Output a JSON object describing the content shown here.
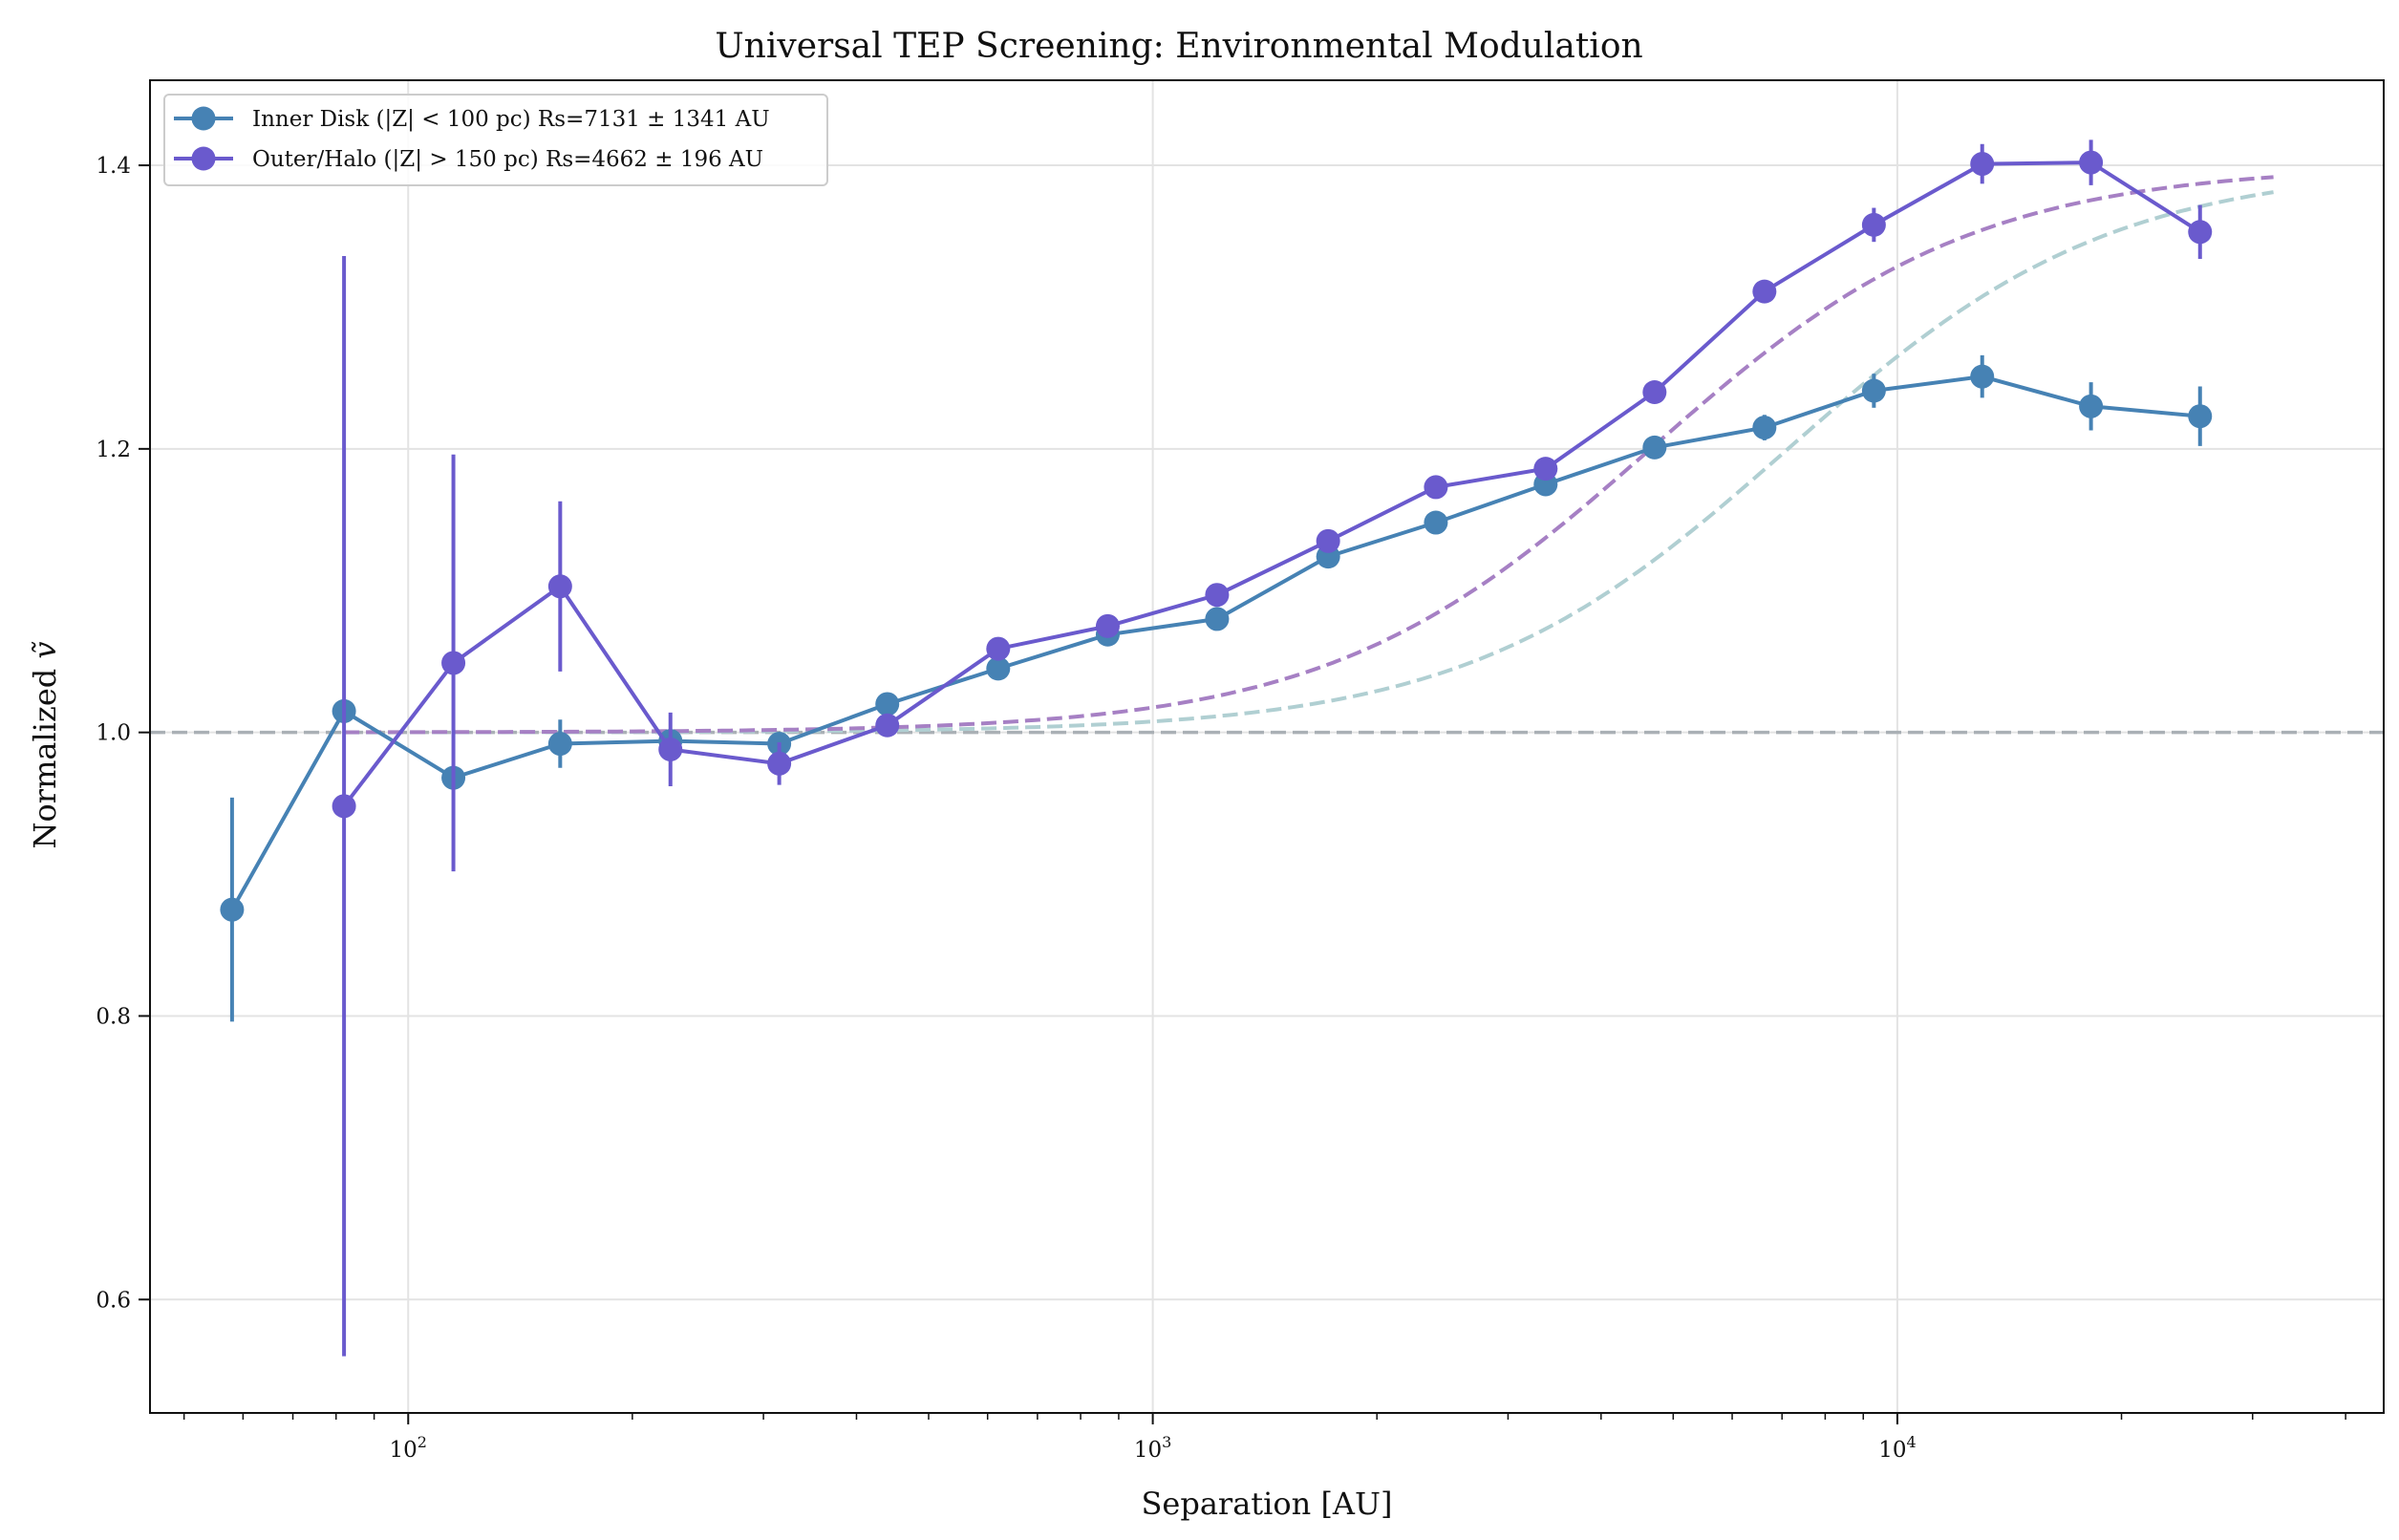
{
  "chart_data": {
    "type": "line",
    "title": "Universal TEP Screening: Environmental Modulation",
    "xlabel": "Separation [AU]",
    "ylabel": "Normalized ",
    "ylabel_symbol": "ṽ",
    "xscale": "log",
    "xlim": [
      45,
      45000
    ],
    "ylim": [
      0.52,
      1.46
    ],
    "x_ticks": [
      {
        "value": 100,
        "base": "10",
        "exp": "2"
      },
      {
        "value": 1000,
        "base": "10",
        "exp": "3"
      },
      {
        "value": 10000,
        "base": "10",
        "exp": "4"
      }
    ],
    "y_ticks": [
      {
        "value": 0.6,
        "label": "0.6"
      },
      {
        "value": 0.8,
        "label": "0.8"
      },
      {
        "value": 1.0,
        "label": "1.0"
      },
      {
        "value": 1.2,
        "label": "1.2"
      },
      {
        "value": 1.4,
        "label": "1.4"
      }
    ],
    "grid": true,
    "legend_position": "top-left",
    "reference_line": {
      "y": 1.0,
      "color": "#aab0b5",
      "style": "dashed"
    },
    "series": [
      {
        "name": "Inner Disk (|Z| < 100 pc) Rs=7131 ± 1341 AU",
        "color": "#4682b4",
        "x": [
          58,
          82,
          115,
          160,
          225,
          315,
          440,
          620,
          870,
          1220,
          1720,
          2400,
          3370,
          4720,
          6630,
          9300,
          13000,
          18200,
          25500
        ],
        "y": [
          0.875,
          1.015,
          0.968,
          0.992,
          0.994,
          0.992,
          1.02,
          1.045,
          1.069,
          1.08,
          1.124,
          1.148,
          1.175,
          1.201,
          1.215,
          1.241,
          1.251,
          1.23,
          1.223
        ],
        "err": [
          0.079,
          0.0,
          0.0,
          0.017,
          0.0,
          0.0,
          0.0,
          0.0,
          0.0,
          0.0,
          0.0,
          0.0,
          0.0,
          0.0,
          0.009,
          0.012,
          0.015,
          0.017,
          0.021
        ]
      },
      {
        "name": "Outer/Halo (|Z| > 150 pc) Rs=4662 ± 196 AU",
        "color": "#6a5acd",
        "x": [
          82,
          115,
          160,
          225,
          315,
          440,
          620,
          870,
          1220,
          1720,
          2400,
          3370,
          4720,
          6630,
          9300,
          13000,
          18200,
          25500
        ],
        "y": [
          0.948,
          1.049,
          1.103,
          0.988,
          0.978,
          1.005,
          1.059,
          1.075,
          1.097,
          1.135,
          1.173,
          1.186,
          1.24,
          1.311,
          1.358,
          1.401,
          1.402,
          1.353
        ],
        "err": [
          0.388,
          0.147,
          0.06,
          0.026,
          0.015,
          0.008,
          0.0,
          0.0,
          0.0,
          0.0,
          0.0,
          0.0,
          0.0,
          0.008,
          0.012,
          0.014,
          0.016,
          0.019
        ]
      }
    ],
    "fit_curves": [
      {
        "color": "#b0cfd2",
        "rs": 7131,
        "amplitude": 0.4,
        "x_range": [
          82,
          32000
        ]
      },
      {
        "color": "#a680c4",
        "rs": 4662,
        "amplitude": 0.4,
        "x_range": [
          82,
          32000
        ]
      }
    ]
  }
}
